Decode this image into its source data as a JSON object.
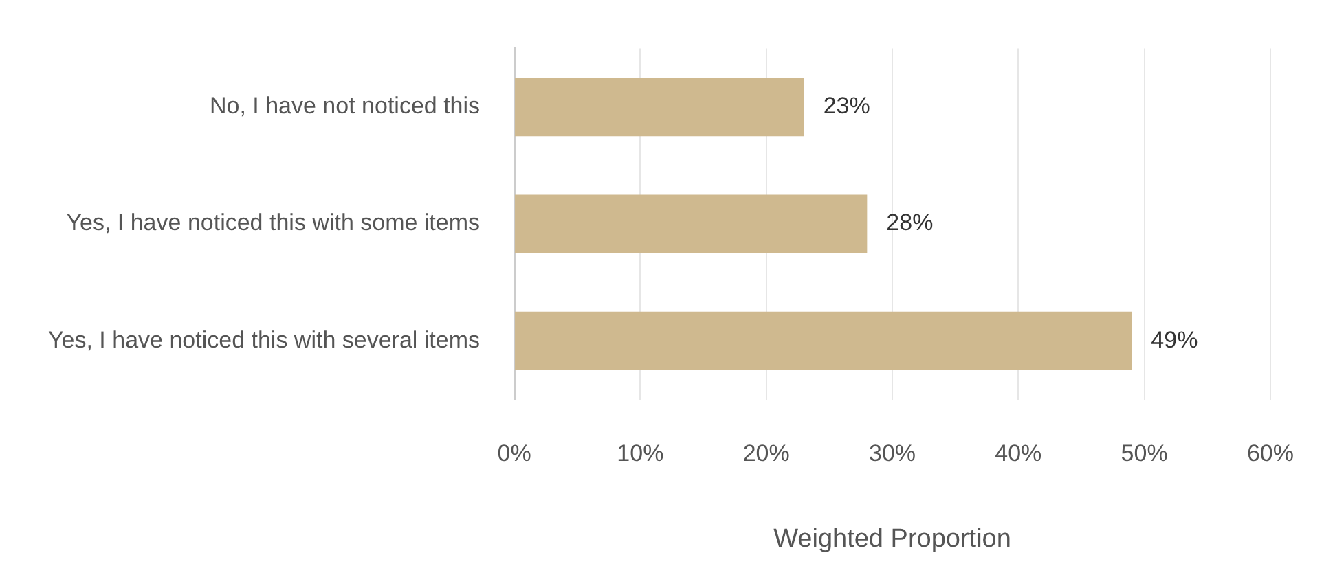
{
  "chart_data": {
    "type": "bar",
    "orientation": "horizontal",
    "xlabel": "Weighted Proportion",
    "categories": [
      "No, I have not noticed this",
      "Yes, I have noticed this with some items",
      "Yes, I have noticed this with several items"
    ],
    "values": [
      23,
      28,
      49
    ],
    "color": "#cfb98f",
    "value_labels": [
      "23%",
      "28%",
      "49%"
    ],
    "xlim": [
      0,
      60
    ],
    "xticks": [
      {
        "value": 0,
        "label": "0%"
      },
      {
        "value": 10,
        "label": "10%"
      },
      {
        "value": 20,
        "label": "20%"
      },
      {
        "value": 30,
        "label": "30%"
      },
      {
        "value": 40,
        "label": "40%"
      },
      {
        "value": 50,
        "label": "50%"
      },
      {
        "value": 60,
        "label": "60%"
      }
    ],
    "grid": "x",
    "legend": false
  }
}
